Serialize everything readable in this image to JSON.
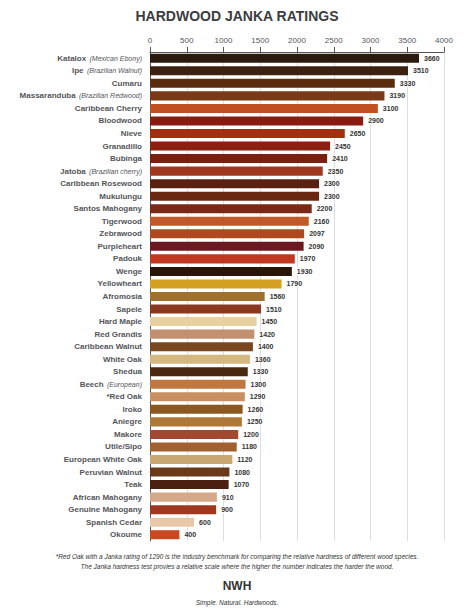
{
  "chart_data": {
    "type": "bar",
    "orientation": "horizontal",
    "title": "HARDWOOD JANKA RATINGS",
    "categories": [
      "Katalox",
      "Ipe",
      "Cumaru",
      "Massaranduba",
      "Caribbean Cherry",
      "Bloodwood",
      "Nieve",
      "Granadillo",
      "Bubinga",
      "Jatoba",
      "Caribbean Rosewood",
      "Mukulungu",
      "Santos Mahogany",
      "Tigerwood",
      "Zebrawood",
      "Purpleheart",
      "Padouk",
      "Wenge",
      "Yellowheart",
      "Afromosia",
      "Sapele",
      "Hard Maple",
      "Red Grandis",
      "Caribbean Walnut",
      "White Oak",
      "Shedua",
      "Beech",
      "*Red Oak",
      "Iroko",
      "Aniegre",
      "Makore",
      "Utile/Sipo",
      "European White Oak",
      "Peruvian Walnut",
      "Teak",
      "African Mahogany",
      "Genuine Mahogany",
      "Spanish Cedar",
      "Okoume"
    ],
    "sublabels": [
      "(Mexican Ebony)",
      "(Brazilian Walnut)",
      null,
      "(Brazilian Redwood)",
      null,
      null,
      null,
      null,
      null,
      "(Brazilian cherry)",
      null,
      null,
      null,
      null,
      null,
      null,
      null,
      null,
      null,
      null,
      null,
      null,
      null,
      null,
      null,
      null,
      "(European)",
      null,
      null,
      null,
      null,
      null,
      null,
      null,
      null,
      null,
      null,
      null,
      null
    ],
    "values": [
      3660,
      3510,
      3330,
      3190,
      3100,
      2900,
      2650,
      2450,
      2410,
      2350,
      2300,
      2300,
      2200,
      2160,
      2097,
      2090,
      1970,
      1930,
      1790,
      1560,
      1510,
      1450,
      1420,
      1400,
      1360,
      1330,
      1300,
      1290,
      1260,
      1250,
      1200,
      1180,
      1120,
      1080,
      1070,
      910,
      900,
      600,
      400
    ],
    "colors": [
      "#2b1a0e",
      "#3d2110",
      "#5a2d0c",
      "#7a3a18",
      "#c05020",
      "#8b1a10",
      "#a03010",
      "#8b2010",
      "#7a2010",
      "#a03820",
      "#5a2010",
      "#6b2810",
      "#7a2818",
      "#c05828",
      "#b04820",
      "#6b1820",
      "#c03820",
      "#2b1508",
      "#d4a020",
      "#a07030",
      "#8b3820",
      "#e8d0a0",
      "#c09070",
      "#7a4820",
      "#d4b880",
      "#4a2810",
      "#c07840",
      "#c89060",
      "#8b5820",
      "#b07838",
      "#a04830",
      "#a06030",
      "#c8a870",
      "#6b3818",
      "#4a2010",
      "#d4a888",
      "#a03820",
      "#e8c8a8",
      "#c84820"
    ],
    "xlim": [
      0,
      4000
    ],
    "xticks": [
      0,
      500,
      1000,
      1500,
      2000,
      2500,
      3000,
      3500,
      4000
    ],
    "grid": true,
    "data_labels": true,
    "annotations": [
      "*Red Oak with a Janka rating of 1290 is the industry benchmark for comparing the relative hardness of different wood species.",
      "The Janka hardness test provies a relative scale where the higher the number indicates the harder the wood.",
      "NWH",
      "Simple. Natural. Hardwoods."
    ]
  }
}
